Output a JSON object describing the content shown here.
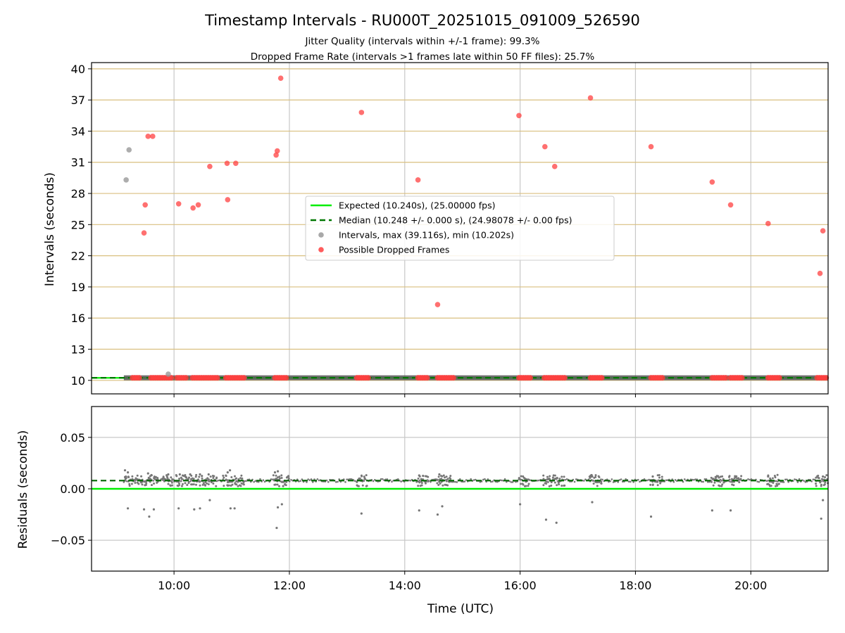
{
  "chart_data": {
    "type": "scatter",
    "title": "Timestamp Intervals - RU000T_20251015_091009_526590",
    "subtitles": [
      "Jitter Quality (intervals within +/-1 frame): 99.3%",
      "Dropped Frame Rate (intervals >1 frames late within 50 FF files): 25.7%"
    ],
    "xlabel": "Time (UTC)",
    "xlim_hours": [
      8.57,
      21.34
    ],
    "x_ticks": [
      {
        "value": 10,
        "label": "10:00"
      },
      {
        "value": 12,
        "label": "12:00"
      },
      {
        "value": 14,
        "label": "14:00"
      },
      {
        "value": 16,
        "label": "16:00"
      },
      {
        "value": 18,
        "label": "18:00"
      },
      {
        "value": 20,
        "label": "20:00"
      }
    ],
    "top_panel": {
      "ylabel": "Intervals (seconds)",
      "ylim": [
        8.7,
        40.6
      ],
      "y_ticks": [
        {
          "value": 10,
          "label": "10"
        },
        {
          "value": 13,
          "label": "13"
        },
        {
          "value": 16,
          "label": "16"
        },
        {
          "value": 19,
          "label": "19"
        },
        {
          "value": 22,
          "label": "22"
        },
        {
          "value": 25,
          "label": "25"
        },
        {
          "value": 28,
          "label": "28"
        },
        {
          "value": 31,
          "label": "31"
        },
        {
          "value": 34,
          "label": "34"
        },
        {
          "value": 37,
          "label": "37"
        },
        {
          "value": 40,
          "label": "40"
        }
      ],
      "expected_value": 10.24,
      "median_value": 10.248,
      "legend": [
        {
          "label": "Expected (10.240s), (25.00000 fps)",
          "kind": "line",
          "color": "#00ee00"
        },
        {
          "label": "Median (10.248 +/- 0.000 s), (24.98078 +/- 0.00 fps)",
          "kind": "dashed",
          "color": "#007700"
        },
        {
          "label": "Intervals, max (39.116s), min (10.202s)",
          "kind": "dot",
          "color": "#999999"
        },
        {
          "label": "Possible Dropped Frames",
          "kind": "dot",
          "color": "#ff4040"
        }
      ],
      "intervals_points": [
        [
          9.17,
          29.3
        ],
        [
          9.22,
          32.2
        ],
        [
          9.9,
          10.6
        ]
      ],
      "dropped_frame_points": [
        [
          9.5,
          26.9
        ],
        [
          9.48,
          24.2
        ],
        [
          9.55,
          33.5
        ],
        [
          9.63,
          33.5
        ],
        [
          10.08,
          27.0
        ],
        [
          10.33,
          26.6
        ],
        [
          10.42,
          26.9
        ],
        [
          10.62,
          30.6
        ],
        [
          10.92,
          30.9
        ],
        [
          10.93,
          27.4
        ],
        [
          11.07,
          30.9
        ],
        [
          11.77,
          31.7
        ],
        [
          11.79,
          32.1
        ],
        [
          11.85,
          39.1
        ],
        [
          13.25,
          35.8
        ],
        [
          14.23,
          29.3
        ],
        [
          14.57,
          17.3
        ],
        [
          15.98,
          35.5
        ],
        [
          16.43,
          32.5
        ],
        [
          16.6,
          30.6
        ],
        [
          17.22,
          37.2
        ],
        [
          18.27,
          32.5
        ],
        [
          19.33,
          29.1
        ],
        [
          19.65,
          26.9
        ],
        [
          20.3,
          25.1
        ],
        [
          21.2,
          20.3
        ],
        [
          21.25,
          24.4
        ]
      ],
      "dropped_frame_clusters": [
        [
          9.28,
          9.42
        ],
        [
          9.6,
          9.96
        ],
        [
          10.05,
          10.22
        ],
        [
          10.32,
          10.78
        ],
        [
          10.9,
          11.22
        ],
        [
          11.75,
          11.98
        ],
        [
          13.17,
          13.38
        ],
        [
          14.23,
          14.42
        ],
        [
          14.57,
          14.85
        ],
        [
          15.98,
          16.18
        ],
        [
          16.42,
          16.78
        ],
        [
          17.22,
          17.42
        ],
        [
          18.27,
          18.47
        ],
        [
          19.33,
          19.57
        ],
        [
          19.65,
          19.85
        ],
        [
          20.3,
          20.5
        ],
        [
          21.15,
          21.34
        ]
      ]
    },
    "bottom_panel": {
      "ylabel": "Residuals (seconds)",
      "ylim": [
        -0.08,
        0.08
      ],
      "y_ticks": [
        {
          "value": 0.05,
          "label": "0.05"
        },
        {
          "value": 0.0,
          "label": "0.00"
        },
        {
          "value": -0.05,
          "label": "−0.05"
        }
      ],
      "zero_line": 0.0,
      "median_residual": 0.008,
      "outliers": [
        [
          9.2,
          -0.019
        ],
        [
          9.48,
          -0.02
        ],
        [
          9.57,
          -0.027
        ],
        [
          9.65,
          -0.02
        ],
        [
          10.08,
          -0.019
        ],
        [
          10.35,
          -0.02
        ],
        [
          10.45,
          -0.019
        ],
        [
          10.62,
          -0.011
        ],
        [
          10.98,
          -0.019
        ],
        [
          11.05,
          -0.019
        ],
        [
          11.78,
          -0.038
        ],
        [
          11.8,
          -0.018
        ],
        [
          11.87,
          -0.015
        ],
        [
          13.25,
          -0.024
        ],
        [
          14.25,
          -0.021
        ],
        [
          14.57,
          -0.025
        ],
        [
          14.65,
          -0.017
        ],
        [
          16.0,
          -0.015
        ],
        [
          16.45,
          -0.03
        ],
        [
          16.63,
          -0.033
        ],
        [
          17.25,
          -0.013
        ],
        [
          18.27,
          -0.027
        ],
        [
          19.33,
          -0.021
        ],
        [
          19.65,
          -0.021
        ],
        [
          21.22,
          -0.029
        ],
        [
          21.25,
          -0.011
        ],
        [
          9.15,
          0.018
        ],
        [
          9.2,
          0.016
        ],
        [
          9.55,
          0.015
        ],
        [
          9.9,
          0.014
        ],
        [
          10.1,
          0.014
        ],
        [
          10.28,
          0.014
        ],
        [
          10.45,
          0.014
        ],
        [
          10.6,
          0.014
        ],
        [
          10.93,
          0.016
        ],
        [
          10.97,
          0.018
        ],
        [
          11.75,
          0.016
        ],
        [
          11.8,
          0.017
        ],
        [
          14.25,
          0.013
        ],
        [
          14.6,
          0.014
        ],
        [
          17.25,
          0.012
        ],
        [
          18.3,
          0.012
        ],
        [
          20.3,
          0.012
        ],
        [
          21.25,
          0.012
        ]
      ],
      "dense_bands": [
        [
          9.13,
          9.72
        ],
        [
          9.8,
          10.75
        ],
        [
          10.85,
          11.22
        ],
        [
          11.72,
          11.98
        ],
        [
          13.17,
          13.35
        ],
        [
          14.22,
          14.4
        ],
        [
          14.55,
          14.8
        ],
        [
          15.97,
          16.15
        ],
        [
          16.4,
          16.75
        ],
        [
          17.2,
          17.4
        ],
        [
          18.25,
          18.45
        ],
        [
          19.3,
          19.55
        ],
        [
          19.62,
          19.82
        ],
        [
          20.28,
          20.48
        ],
        [
          21.12,
          21.34
        ]
      ]
    }
  }
}
